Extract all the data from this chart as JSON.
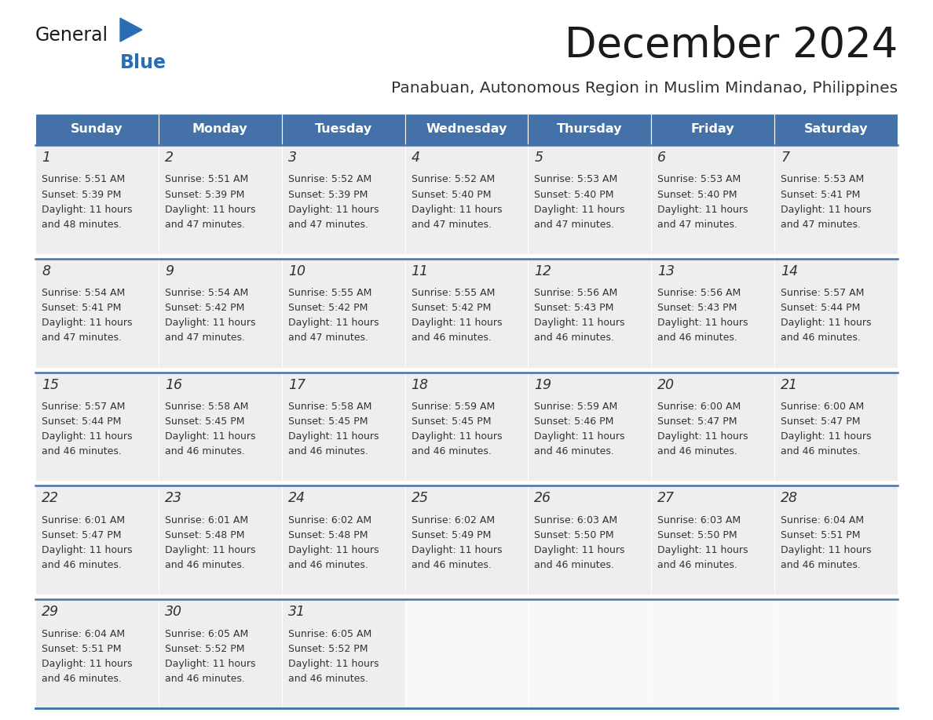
{
  "title": "December 2024",
  "subtitle": "Panabuan, Autonomous Region in Muslim Mindanao, Philippines",
  "days_of_week": [
    "Sunday",
    "Monday",
    "Tuesday",
    "Wednesday",
    "Thursday",
    "Friday",
    "Saturday"
  ],
  "header_bg": "#4472a8",
  "header_text": "#ffffff",
  "cell_bg": "#eeeeee",
  "empty_bg": "#f8f8f8",
  "border_color": "#4472a8",
  "day_num_color": "#333333",
  "text_color": "#333333",
  "title_color": "#1a1a1a",
  "subtitle_color": "#333333",
  "logo_general_color": "#1a1a1a",
  "logo_blue_color": "#2a6db5",
  "weeks": [
    [
      {
        "day": 1,
        "sunrise": "5:51 AM",
        "sunset": "5:39 PM",
        "daylight": "11 hours and 48 minutes."
      },
      {
        "day": 2,
        "sunrise": "5:51 AM",
        "sunset": "5:39 PM",
        "daylight": "11 hours and 47 minutes."
      },
      {
        "day": 3,
        "sunrise": "5:52 AM",
        "sunset": "5:39 PM",
        "daylight": "11 hours and 47 minutes."
      },
      {
        "day": 4,
        "sunrise": "5:52 AM",
        "sunset": "5:40 PM",
        "daylight": "11 hours and 47 minutes."
      },
      {
        "day": 5,
        "sunrise": "5:53 AM",
        "sunset": "5:40 PM",
        "daylight": "11 hours and 47 minutes."
      },
      {
        "day": 6,
        "sunrise": "5:53 AM",
        "sunset": "5:40 PM",
        "daylight": "11 hours and 47 minutes."
      },
      {
        "day": 7,
        "sunrise": "5:53 AM",
        "sunset": "5:41 PM",
        "daylight": "11 hours and 47 minutes."
      }
    ],
    [
      {
        "day": 8,
        "sunrise": "5:54 AM",
        "sunset": "5:41 PM",
        "daylight": "11 hours and 47 minutes."
      },
      {
        "day": 9,
        "sunrise": "5:54 AM",
        "sunset": "5:42 PM",
        "daylight": "11 hours and 47 minutes."
      },
      {
        "day": 10,
        "sunrise": "5:55 AM",
        "sunset": "5:42 PM",
        "daylight": "11 hours and 47 minutes."
      },
      {
        "day": 11,
        "sunrise": "5:55 AM",
        "sunset": "5:42 PM",
        "daylight": "11 hours and 46 minutes."
      },
      {
        "day": 12,
        "sunrise": "5:56 AM",
        "sunset": "5:43 PM",
        "daylight": "11 hours and 46 minutes."
      },
      {
        "day": 13,
        "sunrise": "5:56 AM",
        "sunset": "5:43 PM",
        "daylight": "11 hours and 46 minutes."
      },
      {
        "day": 14,
        "sunrise": "5:57 AM",
        "sunset": "5:44 PM",
        "daylight": "11 hours and 46 minutes."
      }
    ],
    [
      {
        "day": 15,
        "sunrise": "5:57 AM",
        "sunset": "5:44 PM",
        "daylight": "11 hours and 46 minutes."
      },
      {
        "day": 16,
        "sunrise": "5:58 AM",
        "sunset": "5:45 PM",
        "daylight": "11 hours and 46 minutes."
      },
      {
        "day": 17,
        "sunrise": "5:58 AM",
        "sunset": "5:45 PM",
        "daylight": "11 hours and 46 minutes."
      },
      {
        "day": 18,
        "sunrise": "5:59 AM",
        "sunset": "5:45 PM",
        "daylight": "11 hours and 46 minutes."
      },
      {
        "day": 19,
        "sunrise": "5:59 AM",
        "sunset": "5:46 PM",
        "daylight": "11 hours and 46 minutes."
      },
      {
        "day": 20,
        "sunrise": "6:00 AM",
        "sunset": "5:47 PM",
        "daylight": "11 hours and 46 minutes."
      },
      {
        "day": 21,
        "sunrise": "6:00 AM",
        "sunset": "5:47 PM",
        "daylight": "11 hours and 46 minutes."
      }
    ],
    [
      {
        "day": 22,
        "sunrise": "6:01 AM",
        "sunset": "5:47 PM",
        "daylight": "11 hours and 46 minutes."
      },
      {
        "day": 23,
        "sunrise": "6:01 AM",
        "sunset": "5:48 PM",
        "daylight": "11 hours and 46 minutes."
      },
      {
        "day": 24,
        "sunrise": "6:02 AM",
        "sunset": "5:48 PM",
        "daylight": "11 hours and 46 minutes."
      },
      {
        "day": 25,
        "sunrise": "6:02 AM",
        "sunset": "5:49 PM",
        "daylight": "11 hours and 46 minutes."
      },
      {
        "day": 26,
        "sunrise": "6:03 AM",
        "sunset": "5:50 PM",
        "daylight": "11 hours and 46 minutes."
      },
      {
        "day": 27,
        "sunrise": "6:03 AM",
        "sunset": "5:50 PM",
        "daylight": "11 hours and 46 minutes."
      },
      {
        "day": 28,
        "sunrise": "6:04 AM",
        "sunset": "5:51 PM",
        "daylight": "11 hours and 46 minutes."
      }
    ],
    [
      {
        "day": 29,
        "sunrise": "6:04 AM",
        "sunset": "5:51 PM",
        "daylight": "11 hours and 46 minutes."
      },
      {
        "day": 30,
        "sunrise": "6:05 AM",
        "sunset": "5:52 PM",
        "daylight": "11 hours and 46 minutes."
      },
      {
        "day": 31,
        "sunrise": "6:05 AM",
        "sunset": "5:52 PM",
        "daylight": "11 hours and 46 minutes."
      },
      null,
      null,
      null,
      null
    ]
  ]
}
